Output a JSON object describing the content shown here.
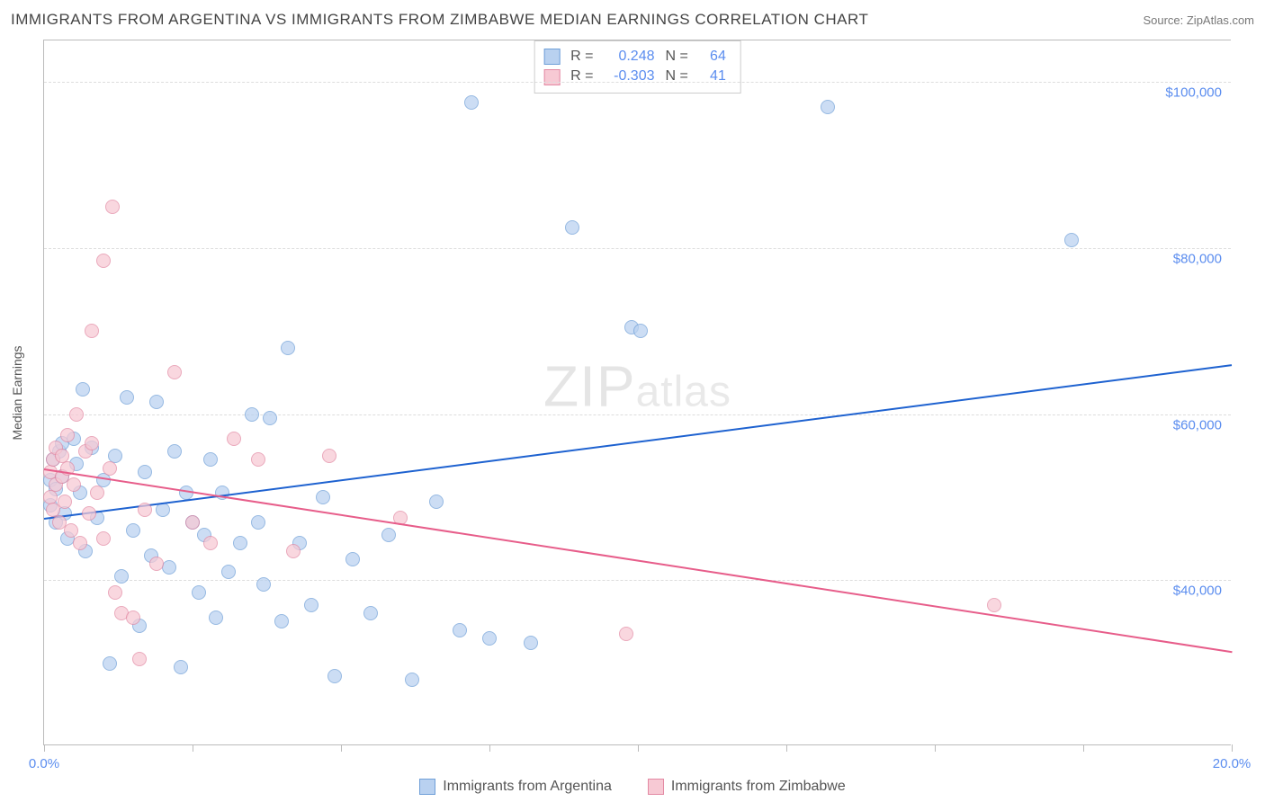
{
  "title": "IMMIGRANTS FROM ARGENTINA VS IMMIGRANTS FROM ZIMBABWE MEDIAN EARNINGS CORRELATION CHART",
  "source_label": "Source: ZipAtlas.com",
  "watermark": {
    "bold": "ZIP",
    "rest": "atlas"
  },
  "y_axis_label": "Median Earnings",
  "chart": {
    "type": "scatter-with-trend",
    "background_color": "#ffffff",
    "grid_color": "#dddddd",
    "axis_color": "#bbbbbb",
    "tick_label_color": "#5b8def",
    "xlim": [
      0.0,
      20.0
    ],
    "ylim": [
      20000,
      105000
    ],
    "x_ticks": [
      0.0,
      2.5,
      5.0,
      7.5,
      10.0,
      12.5,
      15.0,
      17.5,
      20.0
    ],
    "x_tick_labels": {
      "0": "0.0%",
      "20": "20.0%"
    },
    "y_gridlines": [
      40000,
      60000,
      80000,
      100000
    ],
    "y_tick_labels": [
      "$40,000",
      "$60,000",
      "$80,000",
      "$100,000"
    ],
    "marker_radius": 8,
    "marker_opacity": 0.72,
    "marker_border_width": 1
  },
  "series": [
    {
      "key": "argentina",
      "label": "Immigrants from Argentina",
      "fill": "#b9d1f0",
      "stroke": "#6f9fd8",
      "trend_color": "#1e62d0",
      "R": "0.248",
      "N": "64",
      "trend": {
        "x1": 0.0,
        "y1": 47500,
        "x2": 20.0,
        "y2": 66000
      },
      "points": [
        [
          0.1,
          49000
        ],
        [
          0.1,
          52000
        ],
        [
          0.15,
          54500
        ],
        [
          0.2,
          51000
        ],
        [
          0.2,
          47000
        ],
        [
          0.25,
          55500
        ],
        [
          0.3,
          56500
        ],
        [
          0.3,
          52500
        ],
        [
          0.35,
          48000
        ],
        [
          0.4,
          45000
        ],
        [
          0.5,
          57000
        ],
        [
          0.55,
          54000
        ],
        [
          0.6,
          50500
        ],
        [
          0.65,
          63000
        ],
        [
          0.7,
          43500
        ],
        [
          0.8,
          56000
        ],
        [
          0.9,
          47500
        ],
        [
          1.0,
          52000
        ],
        [
          1.1,
          30000
        ],
        [
          1.2,
          55000
        ],
        [
          1.3,
          40500
        ],
        [
          1.4,
          62000
        ],
        [
          1.5,
          46000
        ],
        [
          1.6,
          34500
        ],
        [
          1.7,
          53000
        ],
        [
          1.8,
          43000
        ],
        [
          1.9,
          61500
        ],
        [
          2.0,
          48500
        ],
        [
          2.1,
          41500
        ],
        [
          2.2,
          55500
        ],
        [
          2.3,
          29500
        ],
        [
          2.4,
          50500
        ],
        [
          2.5,
          47000
        ],
        [
          2.6,
          38500
        ],
        [
          2.7,
          45500
        ],
        [
          2.8,
          54500
        ],
        [
          2.9,
          35500
        ],
        [
          3.0,
          50500
        ],
        [
          3.1,
          41000
        ],
        [
          3.3,
          44500
        ],
        [
          3.5,
          60000
        ],
        [
          3.6,
          47000
        ],
        [
          3.7,
          39500
        ],
        [
          3.8,
          59500
        ],
        [
          4.0,
          35000
        ],
        [
          4.1,
          68000
        ],
        [
          4.3,
          44500
        ],
        [
          4.5,
          37000
        ],
        [
          4.7,
          50000
        ],
        [
          4.9,
          28500
        ],
        [
          5.2,
          42500
        ],
        [
          5.5,
          36000
        ],
        [
          5.8,
          45500
        ],
        [
          6.2,
          28000
        ],
        [
          6.6,
          49500
        ],
        [
          7.0,
          34000
        ],
        [
          7.2,
          97500
        ],
        [
          7.5,
          33000
        ],
        [
          8.2,
          32500
        ],
        [
          8.9,
          82500
        ],
        [
          9.9,
          70500
        ],
        [
          10.05,
          70000
        ],
        [
          13.2,
          97000
        ],
        [
          17.3,
          81000
        ]
      ]
    },
    {
      "key": "zimbabwe",
      "label": "Immigrants from Zimbabwe",
      "fill": "#f7c9d4",
      "stroke": "#e389a3",
      "trend_color": "#e75d8a",
      "R": "-0.303",
      "N": "41",
      "trend": {
        "x1": 0.0,
        "y1": 53500,
        "x2": 20.0,
        "y2": 31500
      },
      "points": [
        [
          0.1,
          50000
        ],
        [
          0.1,
          53000
        ],
        [
          0.15,
          54500
        ],
        [
          0.15,
          48500
        ],
        [
          0.2,
          51500
        ],
        [
          0.2,
          56000
        ],
        [
          0.25,
          47000
        ],
        [
          0.3,
          55000
        ],
        [
          0.3,
          52500
        ],
        [
          0.35,
          49500
        ],
        [
          0.4,
          57500
        ],
        [
          0.4,
          53500
        ],
        [
          0.45,
          46000
        ],
        [
          0.5,
          51500
        ],
        [
          0.55,
          60000
        ],
        [
          0.6,
          44500
        ],
        [
          0.7,
          55500
        ],
        [
          0.75,
          48000
        ],
        [
          0.8,
          56500
        ],
        [
          0.8,
          70000
        ],
        [
          0.9,
          50500
        ],
        [
          1.0,
          78500
        ],
        [
          1.0,
          45000
        ],
        [
          1.1,
          53500
        ],
        [
          1.15,
          85000
        ],
        [
          1.2,
          38500
        ],
        [
          1.3,
          36000
        ],
        [
          1.5,
          35500
        ],
        [
          1.6,
          30500
        ],
        [
          1.7,
          48500
        ],
        [
          1.9,
          42000
        ],
        [
          2.2,
          65000
        ],
        [
          2.5,
          47000
        ],
        [
          2.8,
          44500
        ],
        [
          3.2,
          57000
        ],
        [
          3.6,
          54500
        ],
        [
          4.2,
          43500
        ],
        [
          4.8,
          55000
        ],
        [
          6.0,
          47500
        ],
        [
          9.8,
          33500
        ],
        [
          16.0,
          37000
        ]
      ]
    }
  ],
  "legend": [
    {
      "swatch_fill": "#b9d1f0",
      "swatch_stroke": "#6f9fd8",
      "label": "Immigrants from Argentina"
    },
    {
      "swatch_fill": "#f7c9d4",
      "swatch_stroke": "#e389a3",
      "label": "Immigrants from Zimbabwe"
    }
  ]
}
